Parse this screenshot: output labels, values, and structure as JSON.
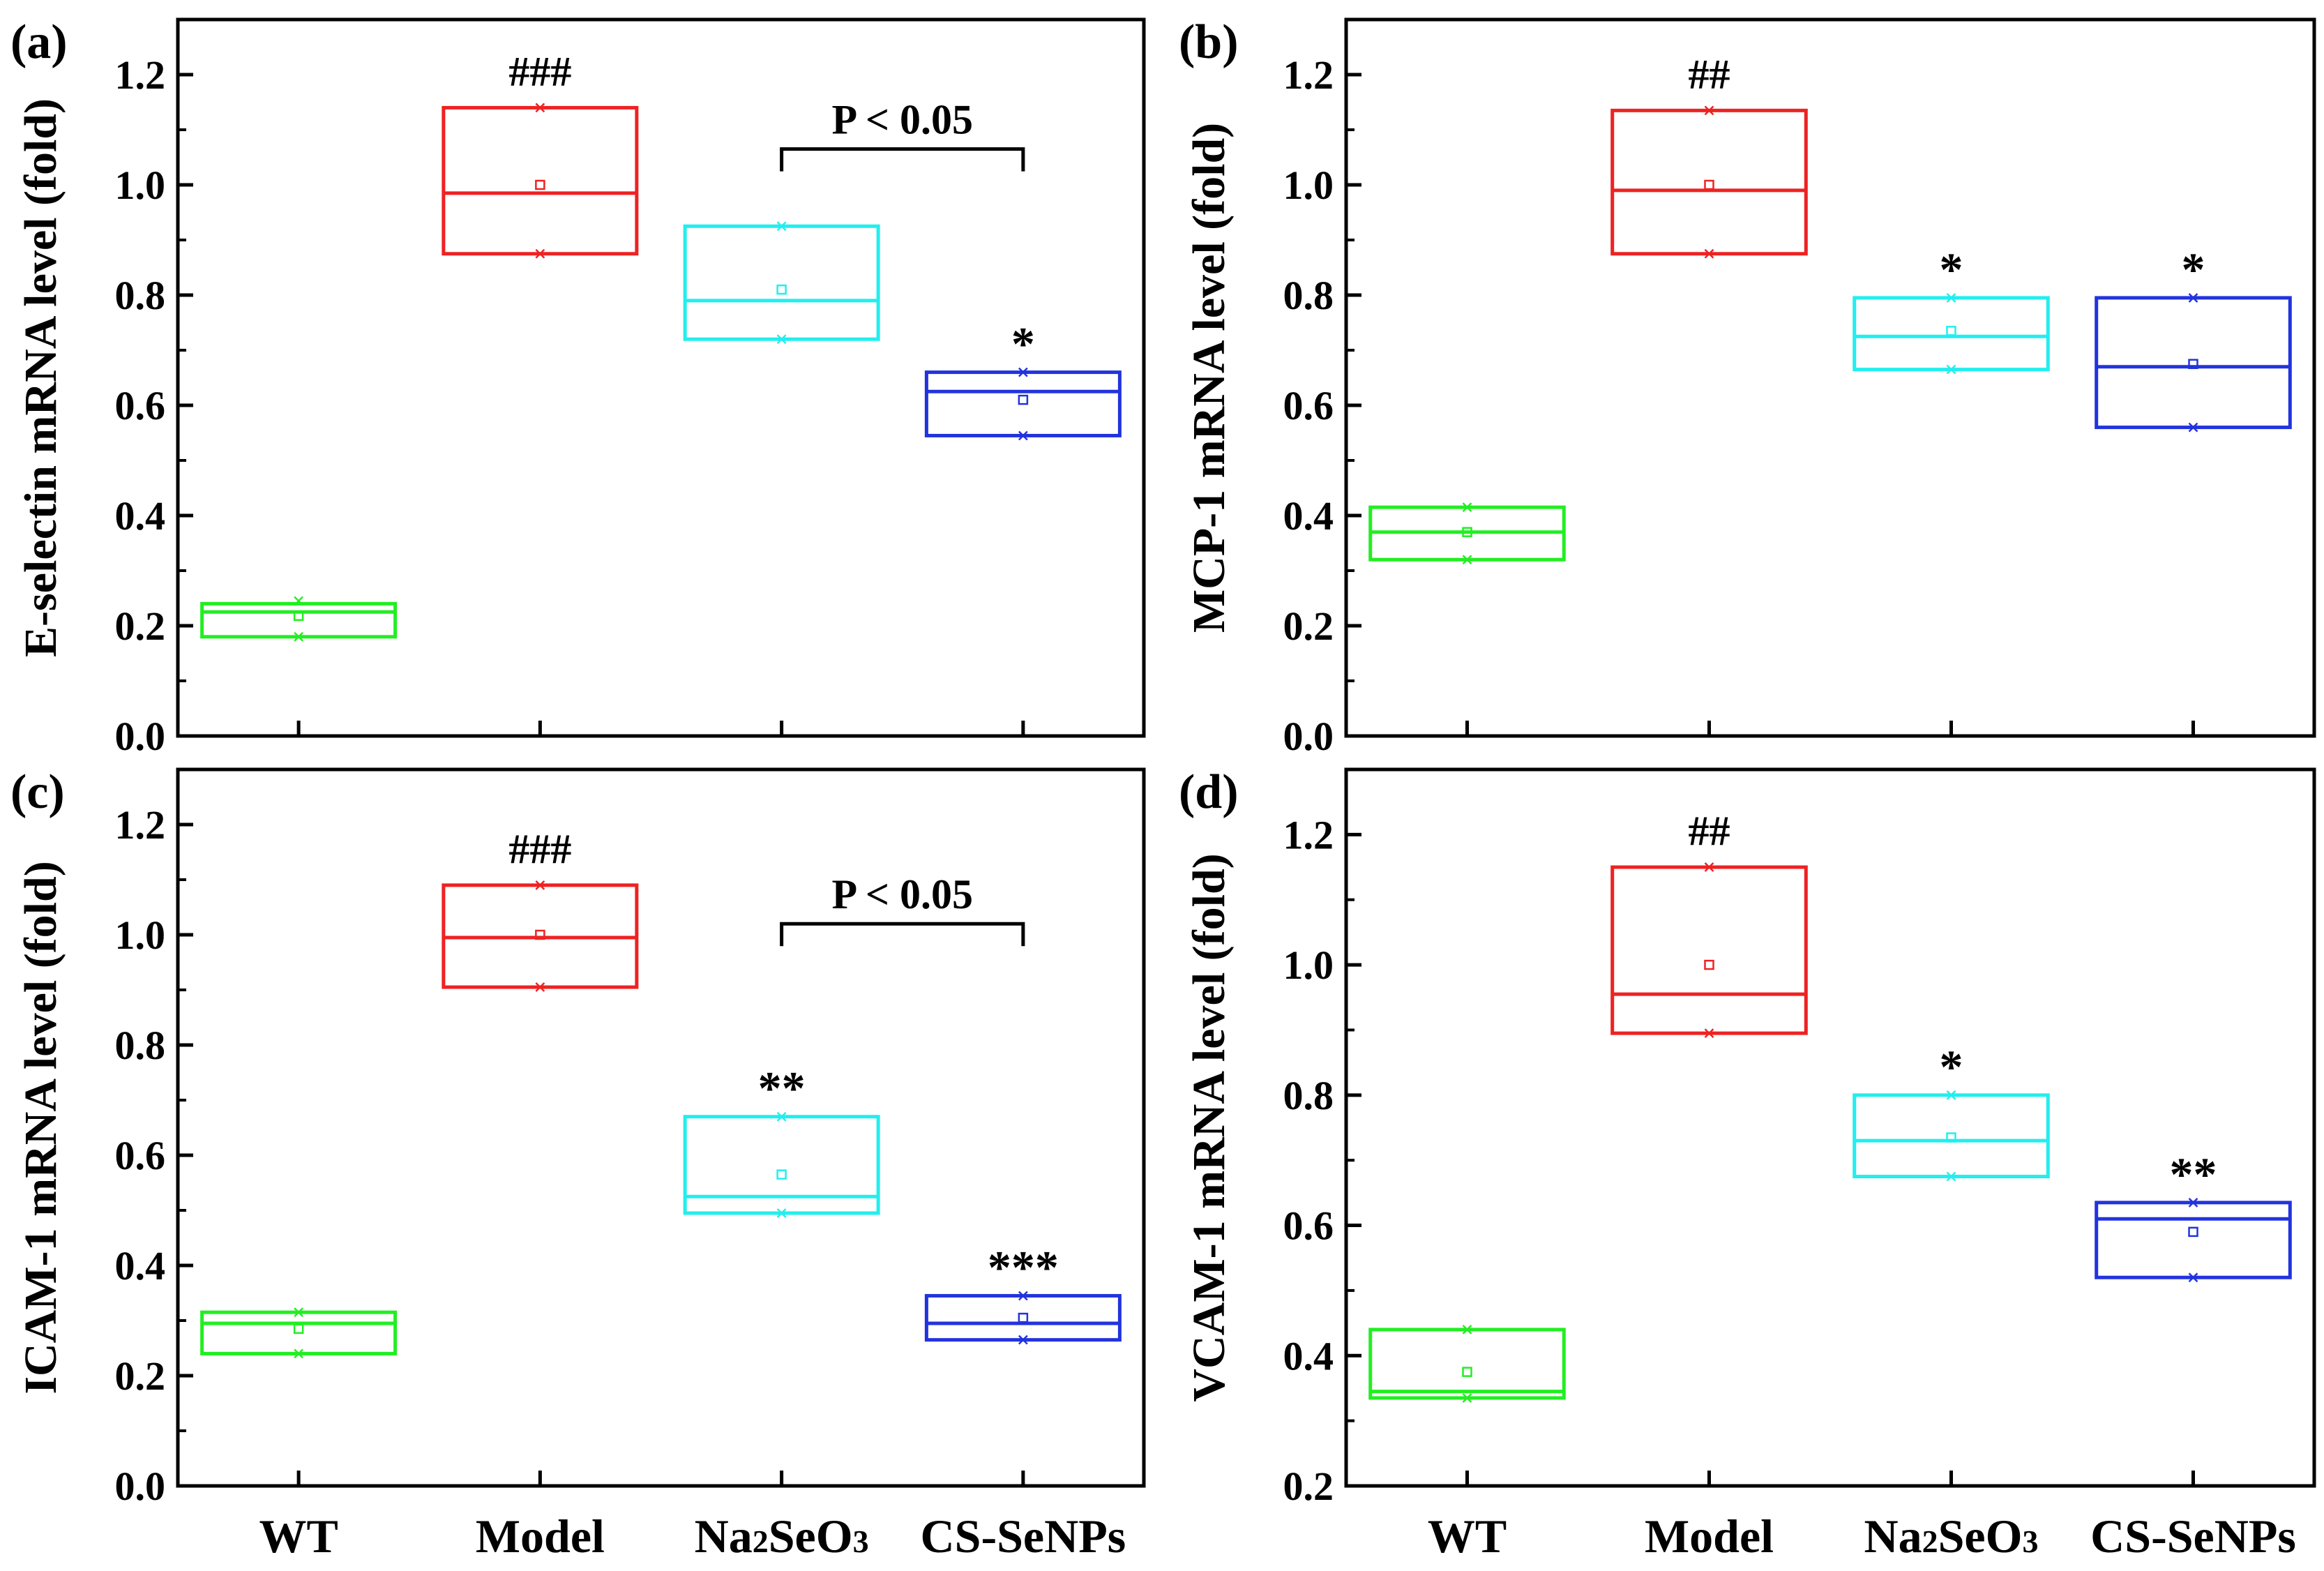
{
  "chart_data": [
    {
      "type": "box",
      "panel_label": "(a)",
      "ylabel": "E-selectin mRNA level (fold)",
      "ylim": [
        0,
        1.3
      ],
      "yticks": [
        "0.0",
        "0.2",
        "0.4",
        "0.6",
        "0.8",
        "1.0",
        "1.2"
      ],
      "categories": [],
      "series": [
        {
          "name": "WT",
          "color": "#22ee22",
          "q1": 0.18,
          "median": 0.225,
          "q3": 0.24,
          "mean": 0.218,
          "min": 0.18,
          "max": 0.245,
          "annotation": ""
        },
        {
          "name": "Model",
          "color": "#ee2222",
          "q1": 0.875,
          "median": 0.985,
          "q3": 1.14,
          "mean": 1.0,
          "min": 0.875,
          "max": 1.14,
          "annotation": "###"
        },
        {
          "name": "Na2SeO3",
          "color": "#22eeee",
          "q1": 0.72,
          "median": 0.79,
          "q3": 0.925,
          "mean": 0.81,
          "min": 0.72,
          "max": 0.925,
          "annotation": ""
        },
        {
          "name": "CS-SeNPs",
          "color": "#2233dd",
          "q1": 0.545,
          "median": 0.625,
          "q3": 0.66,
          "mean": 0.61,
          "min": 0.545,
          "max": 0.66,
          "annotation": "*"
        }
      ],
      "bracket": {
        "from": 2,
        "to": 3,
        "y": 1.065,
        "label": "P < 0.05"
      }
    },
    {
      "type": "box",
      "panel_label": "(b)",
      "ylabel": "MCP-1 mRNA level (fold)",
      "ylim": [
        0,
        1.3
      ],
      "yticks": [
        "0.0",
        "0.2",
        "0.4",
        "0.6",
        "0.8",
        "1.0",
        "1.2"
      ],
      "categories": [],
      "series": [
        {
          "name": "WT",
          "color": "#22ee22",
          "q1": 0.32,
          "median": 0.37,
          "q3": 0.415,
          "mean": 0.37,
          "min": 0.32,
          "max": 0.415,
          "annotation": ""
        },
        {
          "name": "Model",
          "color": "#ee2222",
          "q1": 0.875,
          "median": 0.99,
          "q3": 1.135,
          "mean": 1.0,
          "min": 0.875,
          "max": 1.135,
          "annotation": "##"
        },
        {
          "name": "Na2SeO3",
          "color": "#22eeee",
          "q1": 0.665,
          "median": 0.725,
          "q3": 0.795,
          "mean": 0.735,
          "min": 0.665,
          "max": 0.795,
          "annotation": "*"
        },
        {
          "name": "CS-SeNPs",
          "color": "#2233dd",
          "q1": 0.56,
          "median": 0.67,
          "q3": 0.795,
          "mean": 0.675,
          "min": 0.56,
          "max": 0.795,
          "annotation": "*"
        }
      ]
    },
    {
      "type": "box",
      "panel_label": "(c)",
      "ylabel": "ICAM-1 mRNA level (fold)",
      "ylim": [
        0,
        1.3
      ],
      "yticks": [
        "0.0",
        "0.2",
        "0.4",
        "0.6",
        "0.8",
        "1.0",
        "1.2"
      ],
      "categories": [
        "WT",
        "Model",
        "Na2SeO3",
        "CS-SeNPs"
      ],
      "series": [
        {
          "name": "WT",
          "color": "#22ee22",
          "q1": 0.24,
          "median": 0.295,
          "q3": 0.315,
          "mean": 0.285,
          "min": 0.24,
          "max": 0.315,
          "annotation": ""
        },
        {
          "name": "Model",
          "color": "#ee2222",
          "q1": 0.905,
          "median": 0.995,
          "q3": 1.09,
          "mean": 1.0,
          "min": 0.905,
          "max": 1.09,
          "annotation": "###"
        },
        {
          "name": "Na2SeO3",
          "color": "#22eeee",
          "q1": 0.495,
          "median": 0.525,
          "q3": 0.67,
          "mean": 0.565,
          "min": 0.495,
          "max": 0.67,
          "annotation": "**"
        },
        {
          "name": "CS-SeNPs",
          "color": "#2233dd",
          "q1": 0.265,
          "median": 0.295,
          "q3": 0.345,
          "mean": 0.305,
          "min": 0.265,
          "max": 0.345,
          "annotation": "***"
        }
      ],
      "bracket": {
        "from": 2,
        "to": 3,
        "y": 1.02,
        "label": "P < 0.05"
      }
    },
    {
      "type": "box",
      "panel_label": "(d)",
      "ylabel": "VCAM-1 mRNA level (fold)",
      "ylim": [
        0.2,
        1.3
      ],
      "yticks": [
        "0.2",
        "0.4",
        "0.6",
        "0.8",
        "1.0",
        "1.2"
      ],
      "categories": [
        "WT",
        "Model",
        "Na2SeO3",
        "CS-SeNPs"
      ],
      "series": [
        {
          "name": "WT",
          "color": "#22ee22",
          "q1": 0.335,
          "median": 0.345,
          "q3": 0.44,
          "mean": 0.375,
          "min": 0.335,
          "max": 0.44,
          "annotation": ""
        },
        {
          "name": "Model",
          "color": "#ee2222",
          "q1": 0.895,
          "median": 0.955,
          "q3": 1.15,
          "mean": 1.0,
          "min": 0.895,
          "max": 1.15,
          "annotation": "##"
        },
        {
          "name": "Na2SeO3",
          "color": "#22eeee",
          "q1": 0.675,
          "median": 0.73,
          "q3": 0.8,
          "mean": 0.735,
          "min": 0.675,
          "max": 0.8,
          "annotation": "*"
        },
        {
          "name": "CS-SeNPs",
          "color": "#2233dd",
          "q1": 0.52,
          "median": 0.61,
          "q3": 0.635,
          "mean": 0.59,
          "min": 0.52,
          "max": 0.635,
          "annotation": "**"
        }
      ]
    }
  ]
}
